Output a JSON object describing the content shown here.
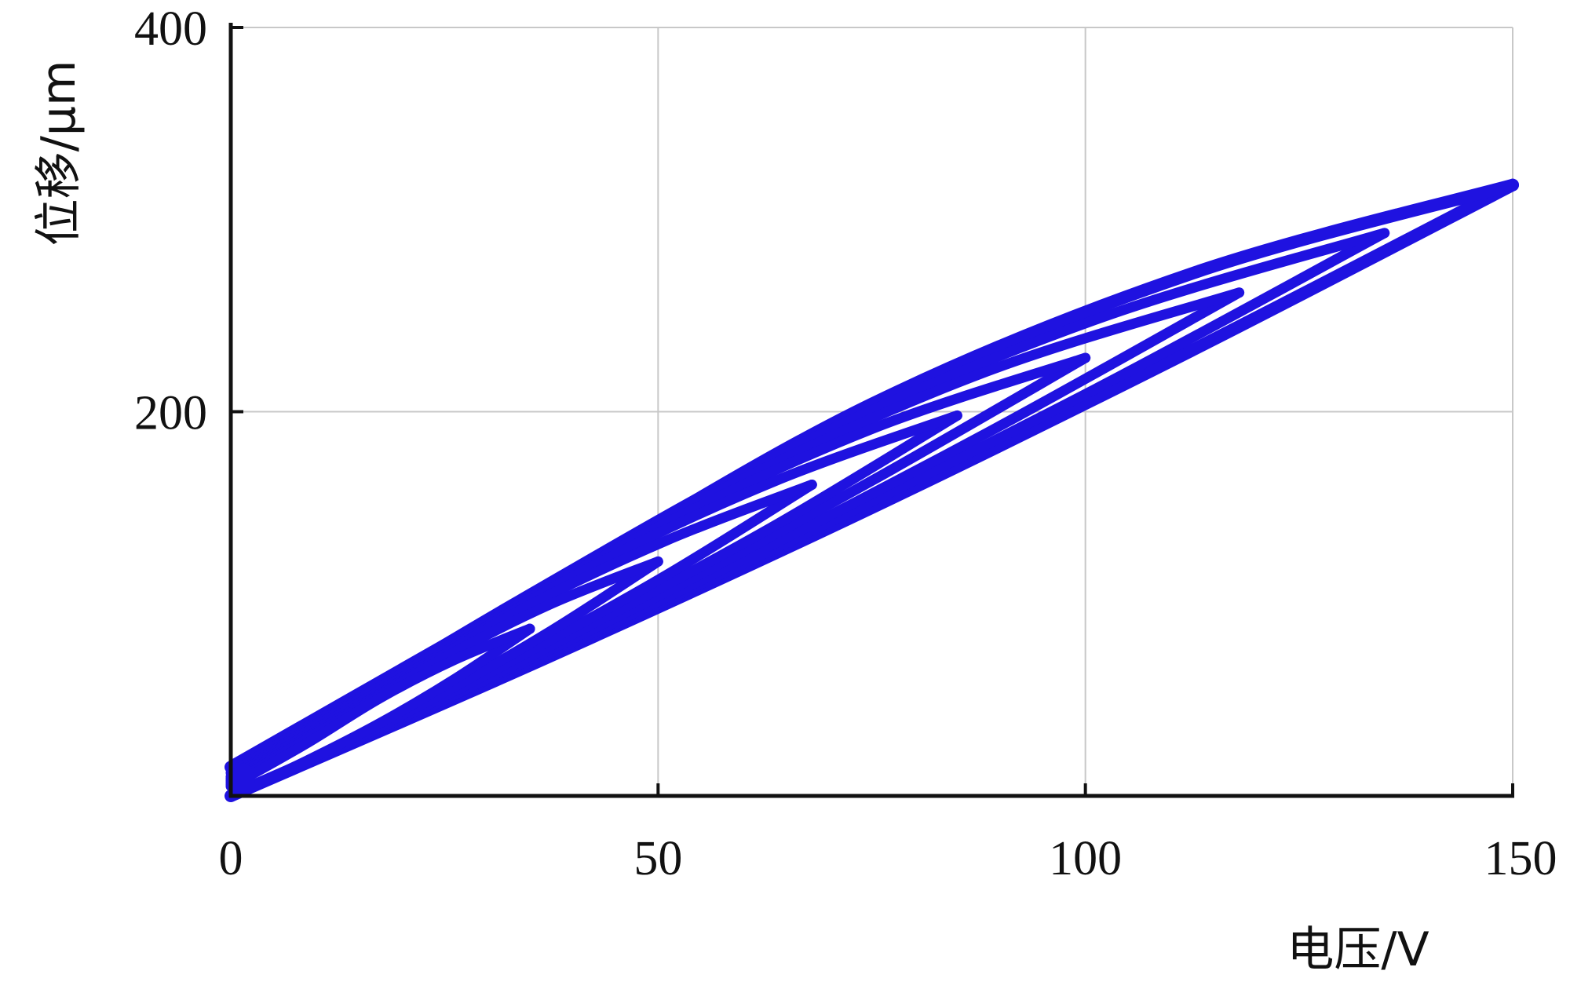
{
  "chart_data": {
    "type": "line",
    "title": "",
    "xlabel": "电压/V",
    "ylabel": "位移/μm",
    "xlim": [
      0,
      150
    ],
    "ylim": [
      0,
      400
    ],
    "xticks": [
      "0",
      "50",
      "100",
      "150"
    ],
    "yticks": [
      "200",
      "400"
    ],
    "xtick_values": [
      0,
      50,
      100,
      150
    ],
    "ytick_values": [
      200,
      400
    ],
    "grid": true,
    "legend": "none",
    "color": "#1f12e0",
    "series": [
      {
        "x": [
          0,
          37.5,
          75,
          112.5,
          150
        ],
        "ascending": [
          0,
          73,
          150,
          232,
          318
        ],
        "descending": [
          15,
          110,
          204,
          272,
          318
        ]
      },
      {
        "x": [
          0,
          33.75,
          67.5,
          101.25,
          135
        ],
        "ascending": [
          0,
          66,
          137,
          212,
          293
        ],
        "descending": [
          12,
          102,
          185,
          248,
          293
        ]
      },
      {
        "x": [
          0,
          29.5,
          59,
          88.5,
          118
        ],
        "ascending": [
          0,
          58,
          121,
          189,
          262
        ],
        "descending": [
          10,
          90,
          163,
          221,
          262
        ]
      },
      {
        "x": [
          0,
          25,
          50,
          75,
          100
        ],
        "ascending": [
          0,
          50,
          104,
          164,
          228
        ],
        "descending": [
          9,
          77,
          140,
          191,
          228
        ]
      },
      {
        "x": [
          0,
          21.25,
          42.5,
          63.75,
          85
        ],
        "ascending": [
          0,
          42,
          90,
          141,
          198
        ],
        "descending": [
          8,
          65,
          120,
          164,
          198
        ]
      },
      {
        "x": [
          0,
          17,
          34,
          51,
          68
        ],
        "ascending": [
          0,
          34,
          73,
          115,
          162
        ],
        "descending": [
          7,
          52,
          97,
          133,
          162
        ]
      },
      {
        "x": [
          0,
          12.5,
          25,
          37.5,
          50
        ],
        "ascending": [
          0,
          25,
          54,
          86,
          122
        ],
        "descending": [
          6,
          39,
          72,
          100,
          122
        ]
      },
      {
        "x": [
          0,
          8.75,
          17.5,
          26.25,
          35
        ],
        "ascending": [
          0,
          18,
          38,
          61,
          87
        ],
        "descending": [
          5,
          27,
          51,
          71,
          87
        ]
      }
    ]
  }
}
